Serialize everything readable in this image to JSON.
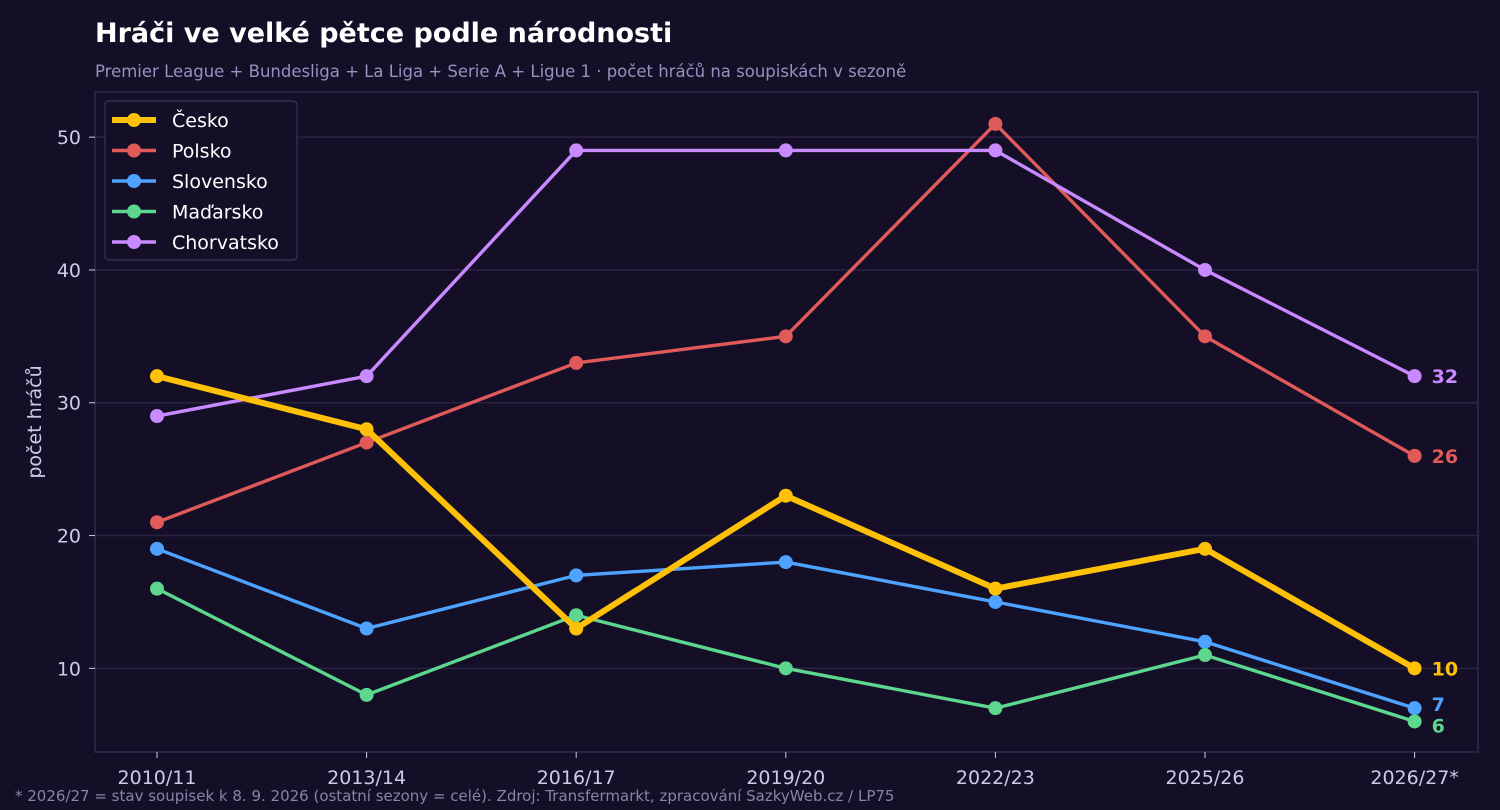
{
  "title": "Hráči ve velké pětce podle národnosti",
  "subtitle": "Premier League + Bundesliga + La Liga + Serie A + Ligue 1 · počet hráčů na soupiskách v sezoně",
  "footnote": "* 2026/27 = stav soupisek k 8. 9. 2026 (ostatní sezony = celé). Zdroj: Transfermarkt, zpracování SazkyWeb.cz / LP75",
  "colors": {
    "background": "#140f26",
    "grid": "#2a2344",
    "frame": "#3a3358"
  },
  "chart_data": {
    "type": "line",
    "title": "Hráči ve velké pětce podle národnosti",
    "subtitle": "Premier League + Bundesliga + La Liga + Serie A + Ligue 1 · počet hráčů na soupiskách v sezoně",
    "xlabel": "",
    "ylabel": "počet hráčů",
    "categories": [
      "2010/11",
      "2013/14",
      "2016/17",
      "2019/20",
      "2022/23",
      "2025/26",
      "2026/27*"
    ],
    "yticks": [
      10,
      20,
      30,
      40,
      50
    ],
    "ylim": [
      3.7,
      53.4
    ],
    "grid": true,
    "legend_position": "top-left",
    "series": [
      {
        "name": "Česko",
        "color": "#ffc107",
        "values": [
          32,
          28,
          13,
          23,
          16,
          19,
          10
        ],
        "emphasis": true,
        "end_label": "10"
      },
      {
        "name": "Polsko",
        "color": "#e05a5a",
        "values": [
          21,
          27,
          33,
          35,
          51,
          35,
          26
        ],
        "end_label": "26"
      },
      {
        "name": "Slovensko",
        "color": "#4da3ff",
        "values": [
          19,
          13,
          17,
          18,
          15,
          12,
          7
        ],
        "end_label": "7"
      },
      {
        "name": "Maďarsko",
        "color": "#5dd68e",
        "values": [
          16,
          8,
          14,
          10,
          7,
          11,
          6
        ],
        "end_label": "6"
      },
      {
        "name": "Chorvatsko",
        "color": "#c98aff",
        "values": [
          29,
          32,
          49,
          49,
          49,
          40,
          32
        ],
        "end_label": "32"
      }
    ]
  }
}
